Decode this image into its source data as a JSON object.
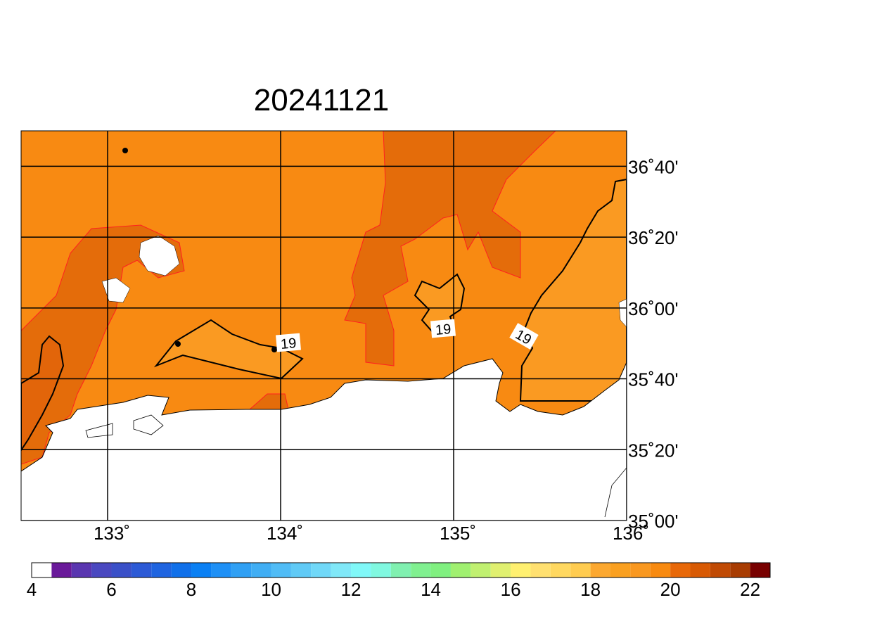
{
  "chart_data": {
    "type": "map",
    "title": "20241121",
    "xlim": [
      132.5,
      136
    ],
    "ylim": [
      35,
      36.8333
    ],
    "xticks": [
      {
        "value": 133,
        "label": "133˚"
      },
      {
        "value": 134,
        "label": "134˚"
      },
      {
        "value": 135,
        "label": "135˚"
      },
      {
        "value": 136,
        "label": "136˚"
      }
    ],
    "yticks": [
      {
        "value": 35,
        "label": "35˚00'"
      },
      {
        "value": 35.3333,
        "label": "35˚20'"
      },
      {
        "value": 35.6667,
        "label": "35˚40'"
      },
      {
        "value": 36,
        "label": "36˚00'"
      },
      {
        "value": 36.3333,
        "label": "36˚20'"
      },
      {
        "value": 36.6667,
        "label": "36˚40'"
      }
    ],
    "grid": true,
    "contour_labels": [
      "19",
      "19",
      "19"
    ],
    "colorbar": {
      "lim": [
        4,
        22.5
      ],
      "ticks": [
        4,
        6,
        8,
        10,
        12,
        14,
        16,
        18,
        20,
        22
      ],
      "colors": [
        "#ffffff",
        "#6a1a9a",
        "#5a36b0",
        "#4a48c0",
        "#3a50c8",
        "#2c5ad6",
        "#1f64e0",
        "#1070ea",
        "#0a80f4",
        "#1e90f6",
        "#30a0f4",
        "#40aef4",
        "#50bcf6",
        "#60caf6",
        "#70d8f8",
        "#80e8f8",
        "#80f8f8",
        "#80f8e0",
        "#80f0b0",
        "#80f090",
        "#80f080",
        "#a0f070",
        "#c0f070",
        "#e0f070",
        "#fff070",
        "#ffe070",
        "#ffd860",
        "#ffcc50",
        "#fca830",
        "#faa020",
        "#f99820",
        "#f88a10",
        "#e86808",
        "#d85a04",
        "#c04a04",
        "#a83c02",
        "#780000"
      ]
    }
  }
}
